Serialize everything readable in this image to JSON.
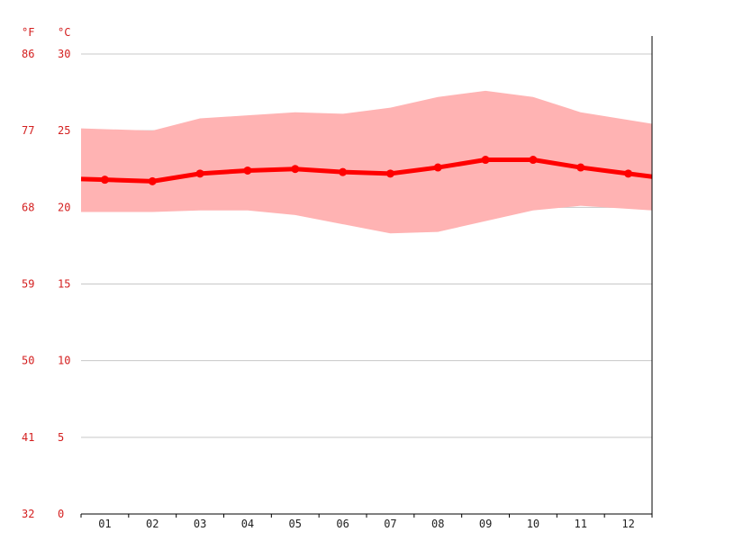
{
  "chart_data": {
    "type": "line",
    "unit_labels": {
      "left": "°F",
      "right": "°C"
    },
    "categories": [
      "01",
      "02",
      "03",
      "04",
      "05",
      "06",
      "07",
      "08",
      "09",
      "10",
      "11",
      "12"
    ],
    "ylim": [
      0,
      30
    ],
    "y_ticks_c": [
      0,
      5,
      10,
      15,
      20,
      25,
      30
    ],
    "y_ticks_f": [
      32,
      41,
      50,
      59,
      68,
      77,
      86
    ],
    "grid": true,
    "series": [
      {
        "role": "mean",
        "values": [
          21.8,
          21.7,
          22.2,
          22.4,
          22.5,
          22.3,
          22.2,
          22.6,
          23.1,
          23.1,
          22.6,
          22.2
        ]
      },
      {
        "role": "max",
        "values": [
          25.1,
          25.0,
          25.8,
          26.0,
          26.2,
          26.1,
          26.5,
          27.2,
          27.6,
          27.2,
          26.2,
          25.7
        ]
      },
      {
        "role": "min",
        "values": [
          19.7,
          19.7,
          19.8,
          19.8,
          19.5,
          18.9,
          18.3,
          18.4,
          19.1,
          19.8,
          20.1,
          19.9
        ]
      }
    ],
    "colors": {
      "mean_line": "#ff0000",
      "range_band": "#ffb3b3",
      "grid": "#c8c8c8",
      "tick_text": "#d42020",
      "axis": "#000000"
    }
  }
}
